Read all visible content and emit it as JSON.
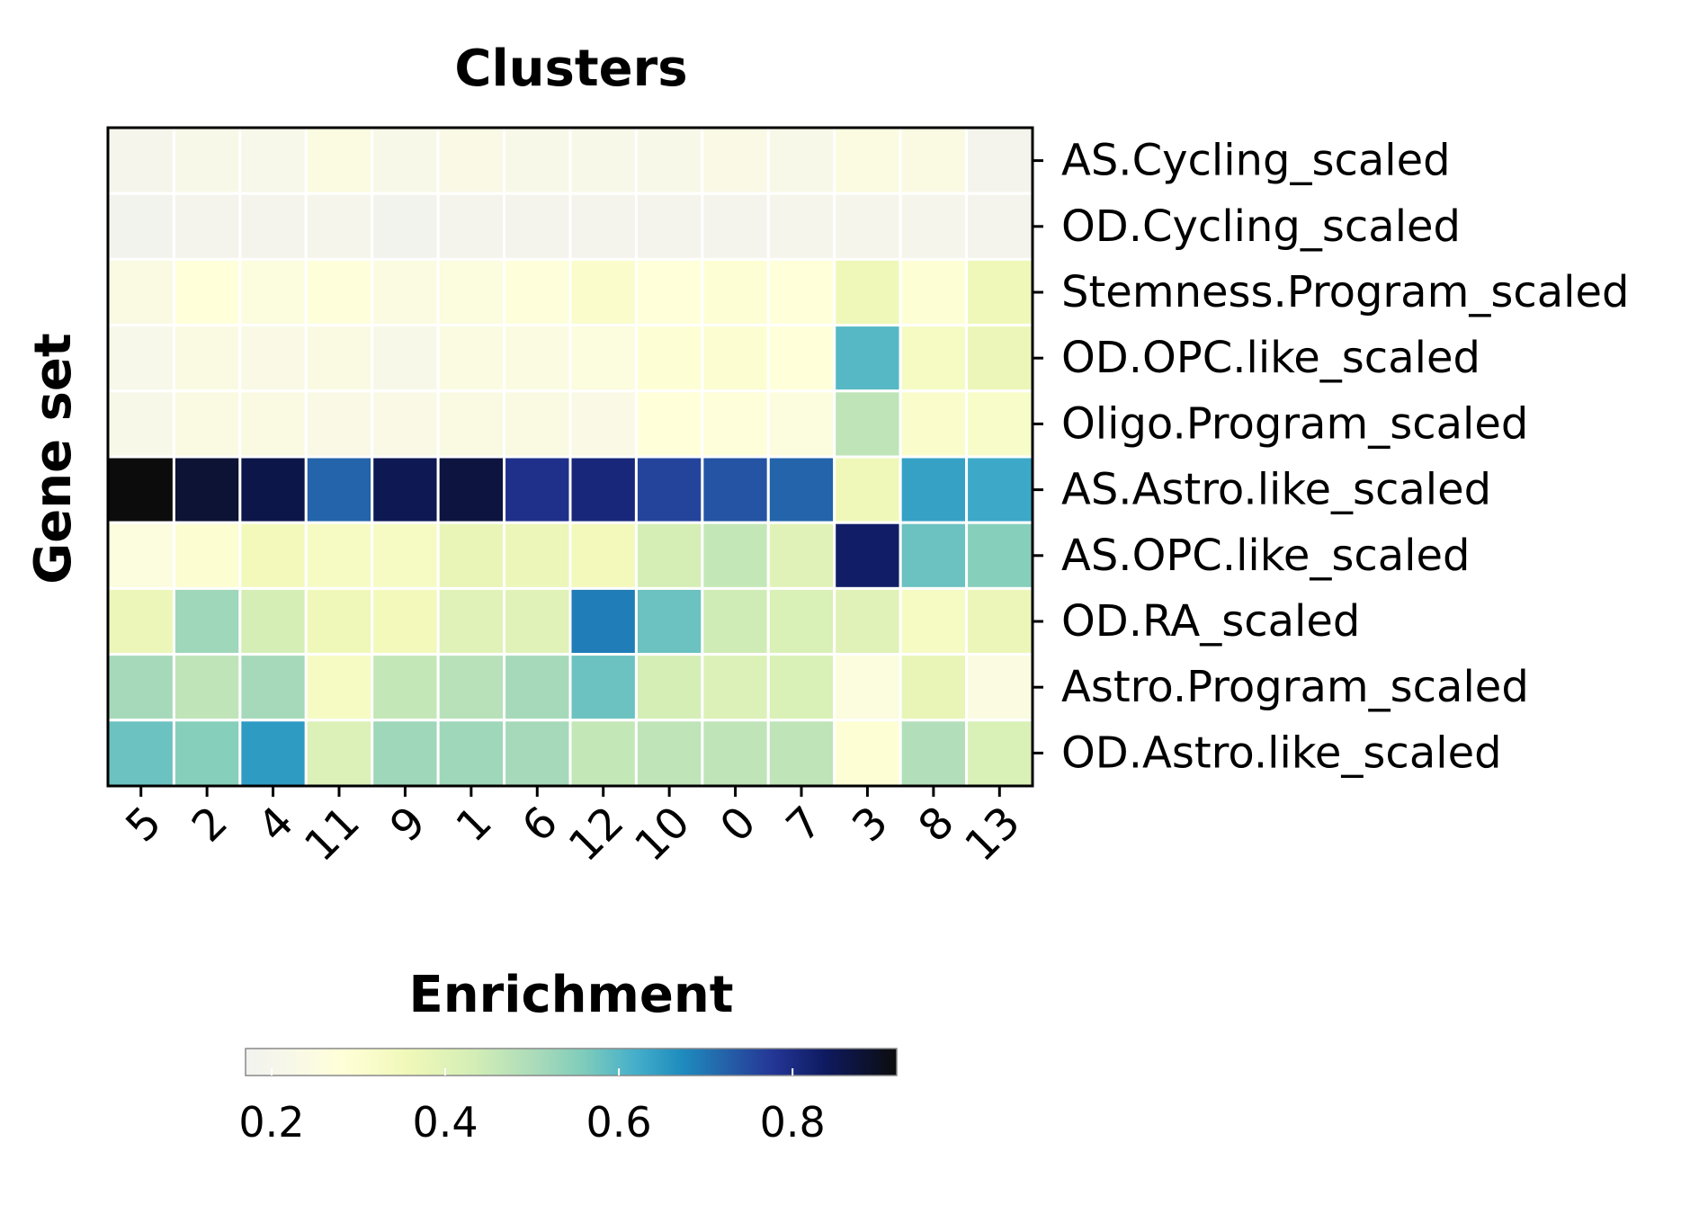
{
  "chart_data": {
    "type": "heatmap",
    "title": "Clusters",
    "ylabel": "Gene set",
    "colorbar": {
      "label": "Enrichment",
      "range": [
        0.17,
        0.92
      ],
      "ticks": [
        0.2,
        0.4,
        0.6,
        0.8
      ],
      "tick_labels": [
        "0.2",
        "0.4",
        "0.6",
        "0.8"
      ],
      "colormap": "YlGnBu",
      "orientation": "horizontal",
      "placement": "bottom"
    },
    "columns": [
      "5",
      "2",
      "4",
      "11",
      "9",
      "1",
      "6",
      "12",
      "10",
      "0",
      "7",
      "3",
      "8",
      "13"
    ],
    "rows": [
      "AS.Cycling_scaled",
      "OD.Cycling_scaled",
      "Stemness.Program_scaled",
      "OD.OPC.like_scaled",
      "Oligo.Program_scaled",
      "AS.Astro.like_scaled",
      "AS.OPC.like_scaled",
      "OD.RA_scaled",
      "Astro.Program_scaled",
      "OD.Astro.like_scaled"
    ],
    "values": [
      [
        0.2,
        0.22,
        0.21,
        0.25,
        0.22,
        0.23,
        0.22,
        0.22,
        0.22,
        0.23,
        0.22,
        0.25,
        0.24,
        0.19
      ],
      [
        0.18,
        0.19,
        0.19,
        0.2,
        0.18,
        0.19,
        0.19,
        0.19,
        0.19,
        0.19,
        0.2,
        0.2,
        0.2,
        0.19
      ],
      [
        0.24,
        0.28,
        0.26,
        0.27,
        0.25,
        0.26,
        0.27,
        0.31,
        0.28,
        0.29,
        0.28,
        0.36,
        0.29,
        0.36
      ],
      [
        0.21,
        0.24,
        0.23,
        0.24,
        0.22,
        0.25,
        0.25,
        0.26,
        0.29,
        0.3,
        0.28,
        0.6,
        0.33,
        0.37
      ],
      [
        0.22,
        0.24,
        0.24,
        0.23,
        0.23,
        0.24,
        0.24,
        0.23,
        0.28,
        0.27,
        0.26,
        0.47,
        0.31,
        0.32
      ],
      [
        0.92,
        0.88,
        0.86,
        0.72,
        0.85,
        0.87,
        0.79,
        0.81,
        0.76,
        0.74,
        0.72,
        0.36,
        0.64,
        0.63
      ],
      [
        0.26,
        0.3,
        0.35,
        0.33,
        0.33,
        0.38,
        0.37,
        0.35,
        0.43,
        0.46,
        0.4,
        0.83,
        0.58,
        0.55
      ],
      [
        0.37,
        0.52,
        0.43,
        0.36,
        0.35,
        0.4,
        0.4,
        0.69,
        0.58,
        0.44,
        0.42,
        0.4,
        0.33,
        0.37
      ],
      [
        0.51,
        0.47,
        0.51,
        0.33,
        0.46,
        0.48,
        0.51,
        0.58,
        0.43,
        0.41,
        0.42,
        0.26,
        0.38,
        0.25
      ],
      [
        0.58,
        0.55,
        0.65,
        0.41,
        0.52,
        0.52,
        0.51,
        0.46,
        0.47,
        0.47,
        0.47,
        0.29,
        0.49,
        0.42
      ]
    ]
  }
}
